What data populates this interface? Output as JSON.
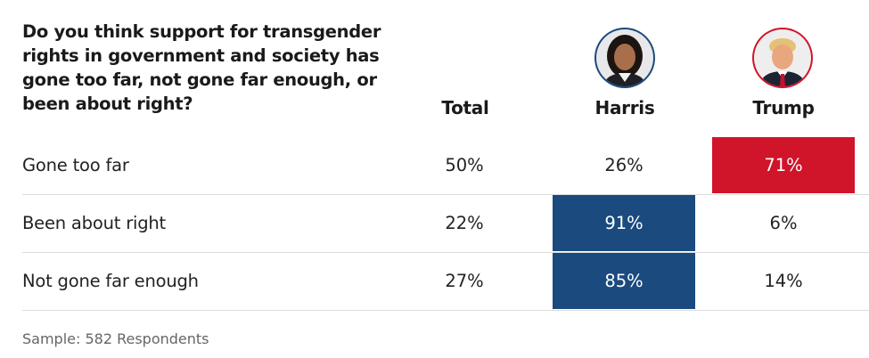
{
  "chart_data": {
    "type": "table",
    "title": "Do you think support for transgender rights in government and society has gone too far, not gone far enough, or been about right?",
    "columns": [
      "Total",
      "Harris",
      "Trump"
    ],
    "rows": [
      {
        "label": "Gone too far",
        "values": [
          "50%",
          "26%",
          "71%"
        ],
        "highlight": [
          null,
          null,
          "red"
        ]
      },
      {
        "label": "Been about right",
        "values": [
          "22%",
          "91%",
          "6%"
        ],
        "highlight": [
          null,
          "blue",
          null
        ]
      },
      {
        "label": "Not gone far enough",
        "values": [
          "27%",
          "85%",
          "14%"
        ],
        "highlight": [
          null,
          "blue",
          null
        ]
      }
    ],
    "colors": {
      "harris": "#1a4a7e",
      "trump": "#d0142a"
    },
    "sample": "Sample: 582 Respondents"
  }
}
